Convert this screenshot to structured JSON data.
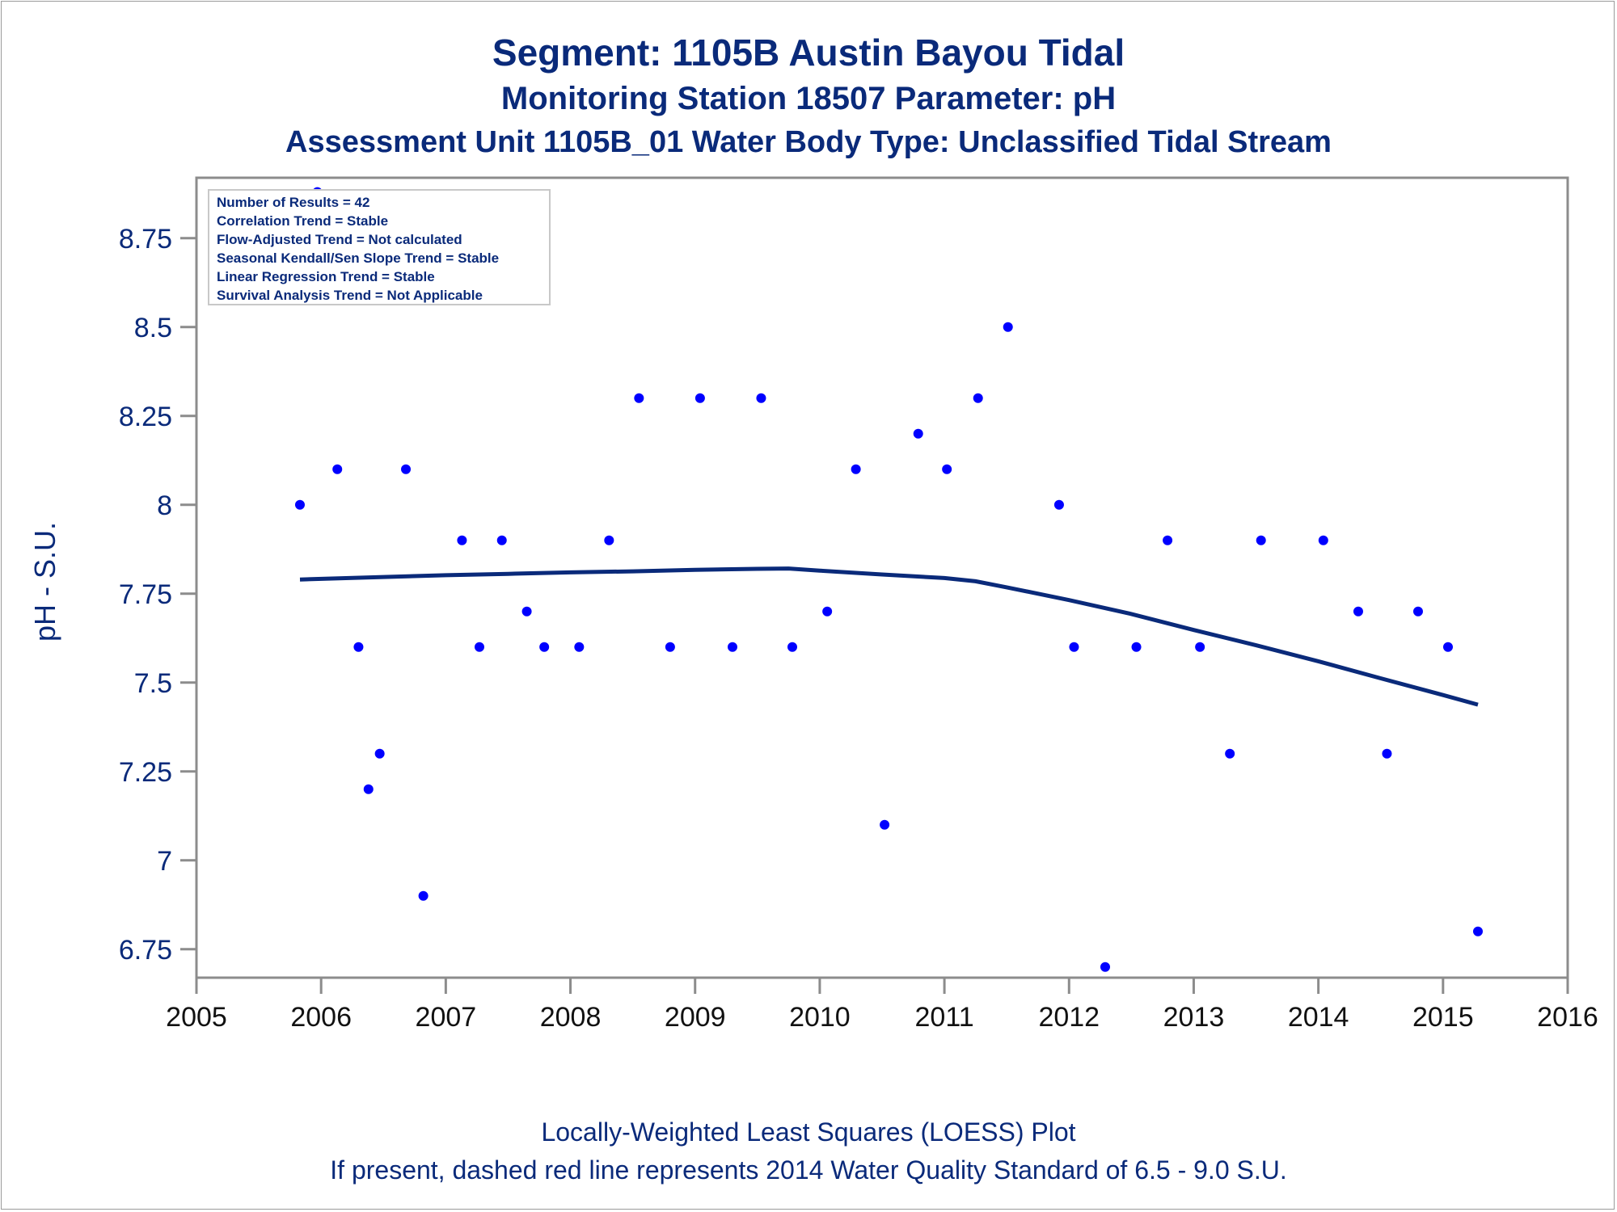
{
  "title": {
    "line1": "Segment: 1105B  Austin Bayou Tidal",
    "line2": "Monitoring Station 18507 Parameter: pH",
    "line3": "Assessment Unit 1105B_01   Water Body Type: Unclassified Tidal Stream"
  },
  "stats_box": [
    "Number of Results = 42",
    "Correlation Trend = Stable",
    "Flow-Adjusted Trend = Not calculated",
    "Seasonal Kendall/Sen Slope Trend = Stable",
    "Linear Regression Trend = Stable",
    "Survival Analysis Trend = Not Applicable"
  ],
  "footnotes": {
    "line1": "Locally-Weighted Least Squares (LOESS) Plot",
    "line2": "If present, dashed red line represents 2014 Water Quality Standard of 6.5 - 9.0 S.U."
  },
  "colors": {
    "text": "#0a2a7a",
    "points": "#0000ff",
    "loess": "#0a2a7a",
    "axis": "#8c8c8c"
  },
  "chart_data": {
    "type": "scatter",
    "ylabel": "pH - S.U.",
    "xlabel": "",
    "xlim": [
      2005,
      2016
    ],
    "ylim": [
      6.67,
      8.92
    ],
    "x_ticks": [
      2005,
      2006,
      2007,
      2008,
      2009,
      2010,
      2011,
      2012,
      2013,
      2014,
      2015,
      2016
    ],
    "y_ticks": [
      6.75,
      7,
      7.25,
      7.5,
      7.75,
      8,
      8.25,
      8.5,
      8.75
    ],
    "y_tick_labels": [
      "6.75",
      "7",
      "7.25",
      "7.5",
      "7.75",
      "8",
      "8.25",
      "8.5",
      "8.75"
    ],
    "points": [
      {
        "x": 2005.83,
        "y": 8.0
      },
      {
        "x": 2005.97,
        "y": 8.88
      },
      {
        "x": 2006.13,
        "y": 8.1
      },
      {
        "x": 2006.3,
        "y": 7.6
      },
      {
        "x": 2006.38,
        "y": 7.2
      },
      {
        "x": 2006.47,
        "y": 7.3
      },
      {
        "x": 2006.68,
        "y": 8.1
      },
      {
        "x": 2006.82,
        "y": 6.9
      },
      {
        "x": 2007.13,
        "y": 7.9
      },
      {
        "x": 2007.27,
        "y": 7.6
      },
      {
        "x": 2007.45,
        "y": 7.9
      },
      {
        "x": 2007.65,
        "y": 7.7
      },
      {
        "x": 2007.79,
        "y": 7.6
      },
      {
        "x": 2008.07,
        "y": 7.6
      },
      {
        "x": 2008.31,
        "y": 7.9
      },
      {
        "x": 2008.55,
        "y": 8.3
      },
      {
        "x": 2008.8,
        "y": 7.6
      },
      {
        "x": 2009.04,
        "y": 8.3
      },
      {
        "x": 2009.3,
        "y": 7.6
      },
      {
        "x": 2009.53,
        "y": 8.3
      },
      {
        "x": 2009.78,
        "y": 7.6
      },
      {
        "x": 2010.06,
        "y": 7.7
      },
      {
        "x": 2010.29,
        "y": 8.1
      },
      {
        "x": 2010.52,
        "y": 7.1
      },
      {
        "x": 2010.79,
        "y": 8.2
      },
      {
        "x": 2011.02,
        "y": 8.1
      },
      {
        "x": 2011.27,
        "y": 8.3
      },
      {
        "x": 2011.51,
        "y": 8.5
      },
      {
        "x": 2011.92,
        "y": 8.0
      },
      {
        "x": 2012.04,
        "y": 7.6
      },
      {
        "x": 2012.29,
        "y": 6.7
      },
      {
        "x": 2012.54,
        "y": 7.6
      },
      {
        "x": 2012.79,
        "y": 7.9
      },
      {
        "x": 2013.05,
        "y": 7.6
      },
      {
        "x": 2013.29,
        "y": 7.3
      },
      {
        "x": 2013.54,
        "y": 7.9
      },
      {
        "x": 2014.04,
        "y": 7.9
      },
      {
        "x": 2014.32,
        "y": 7.7
      },
      {
        "x": 2014.55,
        "y": 7.3
      },
      {
        "x": 2014.8,
        "y": 7.7
      },
      {
        "x": 2015.04,
        "y": 7.6
      },
      {
        "x": 2015.28,
        "y": 6.8
      }
    ],
    "loess": [
      {
        "x": 2005.83,
        "y": 7.79
      },
      {
        "x": 2006.5,
        "y": 7.797
      },
      {
        "x": 2007.0,
        "y": 7.802
      },
      {
        "x": 2007.5,
        "y": 7.806
      },
      {
        "x": 2008.0,
        "y": 7.81
      },
      {
        "x": 2008.5,
        "y": 7.813
      },
      {
        "x": 2009.0,
        "y": 7.817
      },
      {
        "x": 2009.5,
        "y": 7.82
      },
      {
        "x": 2009.75,
        "y": 7.821
      },
      {
        "x": 2010.0,
        "y": 7.815
      },
      {
        "x": 2010.5,
        "y": 7.804
      },
      {
        "x": 2011.0,
        "y": 7.794
      },
      {
        "x": 2011.25,
        "y": 7.785
      },
      {
        "x": 2011.5,
        "y": 7.768
      },
      {
        "x": 2012.0,
        "y": 7.732
      },
      {
        "x": 2012.5,
        "y": 7.693
      },
      {
        "x": 2013.0,
        "y": 7.648
      },
      {
        "x": 2013.5,
        "y": 7.605
      },
      {
        "x": 2014.0,
        "y": 7.56
      },
      {
        "x": 2014.5,
        "y": 7.512
      },
      {
        "x": 2015.0,
        "y": 7.465
      },
      {
        "x": 2015.28,
        "y": 7.438
      }
    ]
  }
}
